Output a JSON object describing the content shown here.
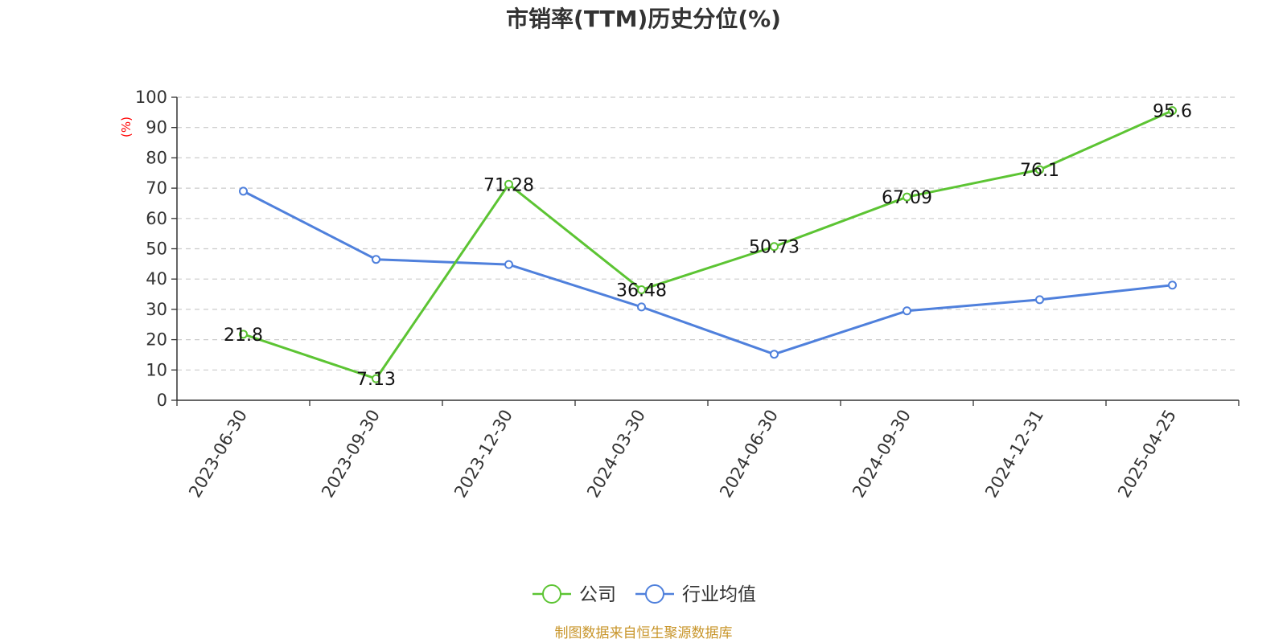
{
  "chart_data": {
    "type": "line",
    "title": "市销率(TTM)历史分位(%)",
    "ylabel": "(%)",
    "xlabel": "",
    "ylim": [
      0,
      100
    ],
    "yticks": [
      0,
      10,
      20,
      30,
      40,
      50,
      60,
      70,
      80,
      90,
      100
    ],
    "grid": true,
    "legend_position": "bottom-center",
    "categories": [
      "2023-06-30",
      "2023-09-30",
      "2023-12-30",
      "2024-03-30",
      "2024-06-30",
      "2024-09-30",
      "2024-12-31",
      "2025-04-25"
    ],
    "series": [
      {
        "name": "公司",
        "color": "#5cc433",
        "values": [
          21.8,
          7.13,
          71.28,
          36.48,
          50.73,
          67.09,
          76.1,
          95.6
        ],
        "labels": [
          "21.8",
          "7.13",
          "71.28",
          "36.48",
          "50.73",
          "67.09",
          "76.1",
          "95.6"
        ],
        "show_labels": true
      },
      {
        "name": "行业均值",
        "color": "#4f80dc",
        "values": [
          69,
          46.5,
          44.8,
          30.8,
          15.2,
          29.5,
          33.2,
          38
        ],
        "show_labels": false
      }
    ]
  },
  "ylabel_color": "#ff0000",
  "source_text": "制图数据来自恒生聚源数据库",
  "source_color": "#c8952a"
}
